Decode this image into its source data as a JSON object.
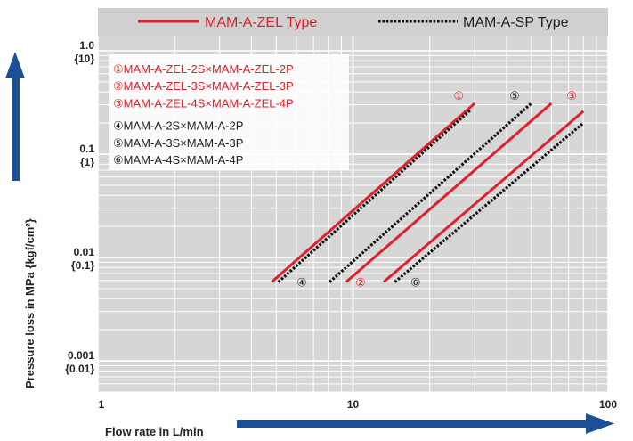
{
  "chart_data": {
    "type": "line",
    "x_scale": "log",
    "y_scale": "log",
    "xlim": [
      1,
      100
    ],
    "ylim": [
      0.0005,
      1
    ],
    "grid": true,
    "xlabel": "Flow rate  in L/min",
    "ylabel": "Pressure loss in MPa {kgf/cm²}",
    "x_ticks": [
      {
        "value": 1,
        "label": "1"
      },
      {
        "value": 10,
        "label": "10"
      },
      {
        "value": 100,
        "label": "100"
      }
    ],
    "y_ticks": [
      {
        "value": 1,
        "label": "1.0",
        "sub": "{10}"
      },
      {
        "value": 0.1,
        "label": "0.1",
        "sub": "{1}"
      },
      {
        "value": 0.01,
        "label": "0.01",
        "sub": "{0.1}"
      },
      {
        "value": 0.001,
        "label": "0.001",
        "sub": "{0.01}"
      }
    ],
    "legend": [
      {
        "label": "MAM-A-ZEL Type",
        "style": "solid",
        "color": "#e0202a"
      },
      {
        "label": "MAM-A-SP Type",
        "style": "dotted",
        "color": "#111111"
      }
    ],
    "series": [
      {
        "marker": "①",
        "name": "MAM-A-ZEL-2S×MAM-A-ZEL-2P",
        "style": "solid",
        "color": "#e0202a",
        "x": [
          4.8,
          30
        ],
        "y": [
          0.0058,
          0.31
        ],
        "marker_at": [
          26,
          0.31
        ],
        "label_color": "#e0202a"
      },
      {
        "marker": "②",
        "name": "MAM-A-ZEL-3S×MAM-A-ZEL-3P",
        "style": "solid",
        "color": "#e0202a",
        "x": [
          9.4,
          60
        ],
        "y": [
          0.0058,
          0.31
        ],
        "marker_at": [
          10.7,
          0.0058
        ],
        "label_color": "#e0202a"
      },
      {
        "marker": "③",
        "name": "MAM-A-ZEL-4S×MAM-A-ZEL-4P",
        "style": "solid",
        "color": "#e0202a",
        "x": [
          13.2,
          80
        ],
        "y": [
          0.0058,
          0.26
        ],
        "marker_at": [
          72,
          0.31
        ],
        "label_color": "#e0202a"
      },
      {
        "marker": "④",
        "name": "MAM-A-2S×MAM-A-2P",
        "style": "dotted",
        "color": "#111111",
        "x": [
          5.1,
          29
        ],
        "y": [
          0.0058,
          0.27
        ],
        "marker_at": [
          6.3,
          0.0058
        ],
        "label_color": "#222222"
      },
      {
        "marker": "⑤",
        "name": "MAM-A-3S×MAM-A-3P",
        "style": "dotted",
        "color": "#111111",
        "x": [
          8.1,
          50
        ],
        "y": [
          0.0058,
          0.31
        ],
        "marker_at": [
          43,
          0.31
        ],
        "label_color": "#222222"
      },
      {
        "marker": "⑥",
        "name": "MAM-A-4S×MAM-A-4P",
        "style": "dotted",
        "color": "#111111",
        "x": [
          14.6,
          80
        ],
        "y": [
          0.0058,
          0.2
        ],
        "marker_at": [
          17.6,
          0.0058
        ],
        "label_color": "#222222"
      }
    ]
  }
}
